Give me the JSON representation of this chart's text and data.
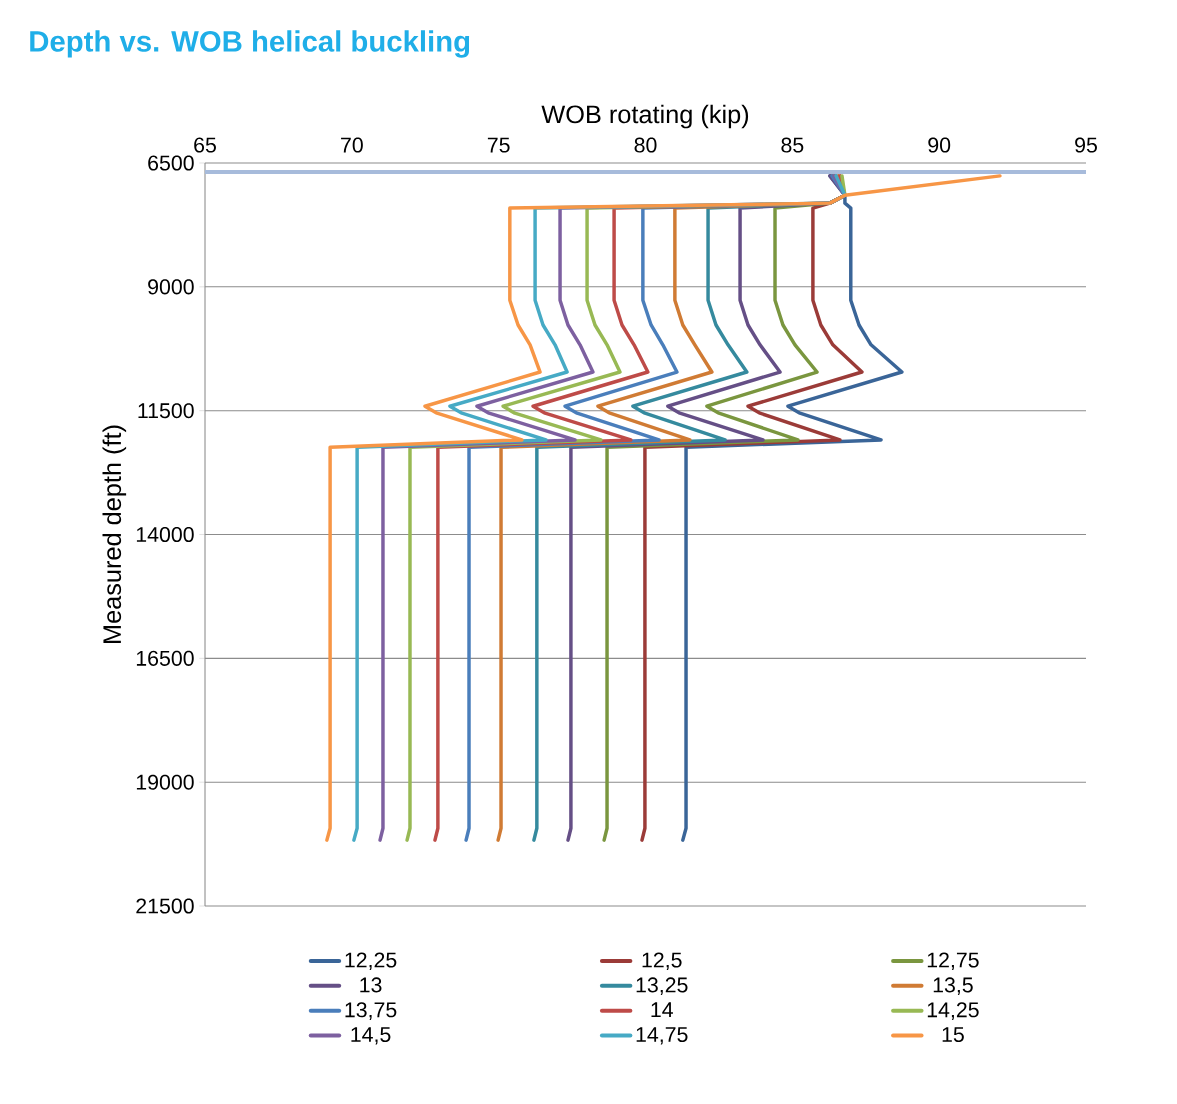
{
  "chart_data": {
    "type": "line",
    "title": "Depth vs. WOB helical buckling",
    "xlabel": "WOB rotating (kip)",
    "ylabel": "Measured depth (ft)",
    "xlim": [
      65,
      95
    ],
    "xticks": [
      65,
      70,
      75,
      80,
      85,
      90,
      95
    ],
    "ylim": [
      21500,
      6500
    ],
    "yticks": [
      6500,
      9000,
      11500,
      14000,
      16500,
      19000,
      21500
    ],
    "grid": "y",
    "legend": "bottom",
    "marker": "none",
    "line_style": "solid",
    "ref_lines": [
      {
        "axis": "y",
        "value": 6680,
        "color": "#a7bbdb"
      }
    ],
    "series": [
      {
        "name": "12,25",
        "color": "#3a6598",
        "x": [
          86.28,
          86.79,
          86.79,
          86.99,
          86.99,
          87.27,
          87.68,
          88.73,
          84.85,
          85.26,
          88.02,
          81.38,
          81.38,
          81.27
        ],
        "values": [
          6760,
          7150,
          7310,
          7410,
          9270,
          9770,
          10170,
          10720,
          11410,
          11550,
          12090,
          12240,
          19930,
          20170
        ]
      },
      {
        "name": "12,5",
        "color": "#9b3b38",
        "x": [
          86.35,
          86.79,
          86.28,
          85.7,
          85.7,
          85.97,
          86.38,
          87.37,
          83.49,
          83.9,
          86.62,
          79.98,
          79.98,
          79.88
        ],
        "values": [
          6760,
          7150,
          7310,
          7410,
          9270,
          9770,
          10170,
          10720,
          11410,
          11550,
          12090,
          12240,
          19930,
          20170
        ]
      },
      {
        "name": "12,75",
        "color": "#7a963f",
        "x": [
          86.42,
          86.79,
          86.28,
          84.41,
          84.41,
          84.68,
          85.09,
          85.84,
          82.09,
          82.5,
          85.19,
          78.69,
          78.69,
          78.59
        ],
        "values": [
          6760,
          7150,
          7310,
          7410,
          9270,
          9770,
          10170,
          10720,
          11410,
          11550,
          12090,
          12240,
          19930,
          20170
        ]
      },
      {
        "name": "13",
        "color": "#654f86",
        "x": [
          86.28,
          86.79,
          86.28,
          83.22,
          83.22,
          83.49,
          83.9,
          84.58,
          80.76,
          81.17,
          84.0,
          77.46,
          77.46,
          77.36
        ],
        "values": [
          6760,
          7150,
          7310,
          7410,
          9270,
          9770,
          10170,
          10720,
          11410,
          11550,
          12090,
          12240,
          19930,
          20170
        ]
      },
      {
        "name": "13,25",
        "color": "#358a9e",
        "x": [
          86.49,
          86.79,
          86.28,
          82.13,
          82.13,
          82.4,
          82.81,
          83.45,
          79.57,
          79.98,
          82.71,
          76.3,
          76.3,
          76.2
        ],
        "values": [
          6760,
          7150,
          7310,
          7410,
          9270,
          9770,
          10170,
          10720,
          11410,
          11550,
          12090,
          12240,
          19930,
          20170
        ]
      },
      {
        "name": "13,5",
        "color": "#d07b34",
        "x": [
          86.56,
          86.79,
          86.28,
          81.0,
          81.0,
          81.27,
          81.68,
          82.26,
          78.38,
          78.79,
          81.51,
          75.08,
          75.08,
          74.98
        ],
        "values": [
          6760,
          7150,
          7310,
          7410,
          9270,
          9770,
          10170,
          10720,
          11410,
          11550,
          12090,
          12240,
          19930,
          20170
        ]
      },
      {
        "name": "13,75",
        "color": "#4a7ebb",
        "x": [
          86.35,
          86.79,
          86.28,
          79.91,
          79.91,
          80.19,
          80.59,
          81.07,
          77.26,
          77.67,
          80.46,
          73.99,
          73.99,
          73.89
        ],
        "values": [
          6760,
          7150,
          7310,
          7410,
          9270,
          9770,
          10170,
          10720,
          11410,
          11550,
          12090,
          12240,
          19930,
          20170
        ]
      },
      {
        "name": "14",
        "color": "#be4b48",
        "x": [
          86.62,
          86.79,
          86.28,
          78.93,
          78.93,
          79.2,
          79.61,
          80.08,
          76.17,
          76.58,
          79.5,
          72.93,
          72.93,
          72.83
        ],
        "values": [
          6760,
          7150,
          7310,
          7410,
          9270,
          9770,
          10170,
          10720,
          11410,
          11550,
          12090,
          12240,
          19930,
          20170
        ]
      },
      {
        "name": "14,25",
        "color": "#98b954",
        "x": [
          86.69,
          86.79,
          86.28,
          78.01,
          78.01,
          78.28,
          78.69,
          79.13,
          75.15,
          75.55,
          78.48,
          71.98,
          71.98,
          71.88
        ],
        "values": [
          6760,
          7150,
          7310,
          7410,
          9270,
          9770,
          10170,
          10720,
          11410,
          11550,
          12090,
          12240,
          19930,
          20170
        ]
      },
      {
        "name": "14,5",
        "color": "#7d60a0",
        "x": [
          86.42,
          86.79,
          86.28,
          77.09,
          77.09,
          77.36,
          77.77,
          78.21,
          74.26,
          74.67,
          77.6,
          71.06,
          71.06,
          70.96
        ],
        "values": [
          6760,
          7150,
          7310,
          7410,
          9270,
          9770,
          10170,
          10720,
          11410,
          11550,
          12090,
          12240,
          19930,
          20170
        ]
      },
      {
        "name": "14,75",
        "color": "#46aac5",
        "x": [
          86.49,
          86.79,
          86.28,
          76.24,
          76.24,
          76.51,
          76.92,
          77.33,
          73.34,
          73.75,
          76.61,
          70.18,
          70.18,
          70.07
        ],
        "values": [
          6760,
          7150,
          7310,
          7410,
          9270,
          9770,
          10170,
          10720,
          11410,
          11550,
          12090,
          12240,
          19930,
          20170
        ]
      },
      {
        "name": "15",
        "color": "#f79646",
        "x": [
          92.07,
          86.79,
          86.28,
          75.38,
          75.38,
          75.66,
          76.07,
          76.41,
          72.49,
          72.9,
          75.79,
          69.26,
          69.26,
          69.15
        ],
        "values": [
          6760,
          7150,
          7310,
          7410,
          9270,
          9770,
          10170,
          10720,
          11410,
          11550,
          12090,
          12240,
          19930,
          20170
        ]
      }
    ]
  }
}
